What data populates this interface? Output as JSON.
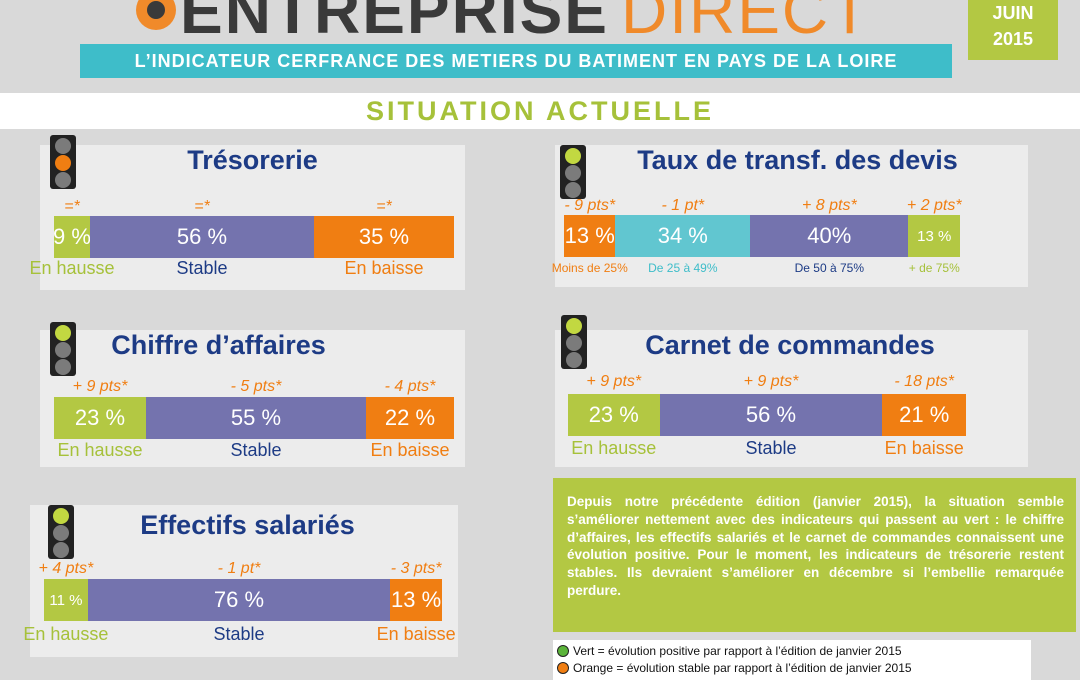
{
  "header": {
    "logo_text_main": "ENTREPRISE",
    "logo_text_accent": "DIRECT",
    "banner_title": "L’INDICATEUR CERFRANCE DES METIERS DU BATIMENT EN PAYS DE LA LOIRE",
    "date_month": "JUIN",
    "date_year": "2015",
    "section_title": "SITUATION ACTUELLE"
  },
  "colors": {
    "green": "#b3c843",
    "purple": "#7473ae",
    "orange": "#f07e12",
    "teal": "#61c6d0",
    "navy": "#1d3b85",
    "banner": "#3ebdc9"
  },
  "chart_data": [
    {
      "type": "bar",
      "stacked": true,
      "orientation": "horizontal",
      "title": "Trésorerie",
      "traffic_light": "orange",
      "categories": [
        "En hausse",
        "Stable",
        "En baisse"
      ],
      "values": [
        9,
        56,
        35
      ],
      "labels": [
        "9 %",
        "56 %",
        "35 %"
      ],
      "changes": [
        "=*",
        "=*",
        "=*"
      ]
    },
    {
      "type": "bar",
      "stacked": true,
      "orientation": "horizontal",
      "title": "Chiffre d’affaires",
      "traffic_light": "green",
      "categories": [
        "En hausse",
        "Stable",
        "En baisse"
      ],
      "values": [
        23,
        55,
        22
      ],
      "labels": [
        "23 %",
        "55 %",
        "22 %"
      ],
      "changes": [
        "+ 9 pts*",
        "- 5 pts*",
        "- 4 pts*"
      ]
    },
    {
      "type": "bar",
      "stacked": true,
      "orientation": "horizontal",
      "title": "Effectifs salariés",
      "traffic_light": "green",
      "categories": [
        "En hausse",
        "Stable",
        "En baisse"
      ],
      "values": [
        11,
        76,
        13
      ],
      "labels": [
        "11 %",
        "76 %",
        "13 %"
      ],
      "changes": [
        "+ 4 pts*",
        "- 1 pt*",
        "- 3 pts*"
      ]
    },
    {
      "type": "bar",
      "stacked": true,
      "orientation": "horizontal",
      "title": "Taux de transf. des devis",
      "traffic_light": "green",
      "categories": [
        "Moins de 25%",
        "De 25 à 49%",
        "De 50 à 75%",
        "+ de 75%"
      ],
      "values": [
        13,
        34,
        40,
        13
      ],
      "labels": [
        "13 %",
        "34 %",
        "40%",
        "13 %"
      ],
      "changes": [
        "- 9 pts*",
        "- 1 pt*",
        "+ 8 pts*",
        "+ 2 pts*"
      ]
    },
    {
      "type": "bar",
      "stacked": true,
      "orientation": "horizontal",
      "title": "Carnet de commandes",
      "traffic_light": "green",
      "categories": [
        "En hausse",
        "Stable",
        "En baisse"
      ],
      "values": [
        23,
        56,
        21
      ],
      "labels": [
        "23 %",
        "56 %",
        "21 %"
      ],
      "changes": [
        "+ 9 pts*",
        "+ 9 pts*",
        "- 18 pts*"
      ]
    }
  ],
  "summary": {
    "text": "Depuis notre précédente édition (janvier 2015), la situation semble s’améliorer nettement avec des indicateurs qui passent au vert : le chiffre d’affaires, les effectifs salariés et le carnet de commandes connaissent une évolution positive. Pour le moment, les indicateurs de trésorerie restent stables. Ils devraient s’améliorer en décembre si l’embellie remarquée perdure."
  },
  "legend": {
    "items": [
      {
        "color": "#5bb43a",
        "text": "Vert = évolution positive par rapport à l’édition de janvier 2015"
      },
      {
        "color": "#f07e12",
        "text": "Orange = évolution stable par rapport à l’édition de janvier 2015"
      }
    ]
  }
}
